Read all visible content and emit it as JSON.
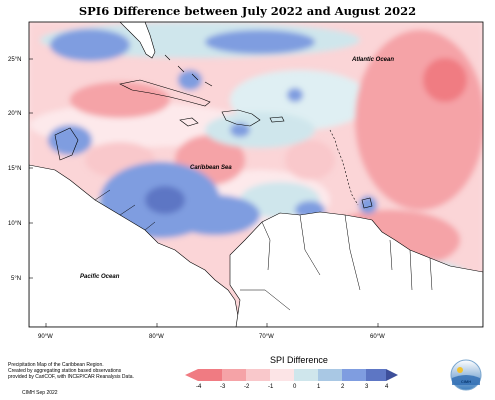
{
  "title": "SPI6 Difference between July 2022 and August 2022",
  "lat_labels": [
    "25°N",
    "20°N",
    "15°N",
    "10°N",
    "5°N"
  ],
  "lon_labels": [
    "90°W",
    "80°W",
    "70°W",
    "60°W"
  ],
  "places": {
    "atlantic": "Atlantic Ocean",
    "caribbean": "Caribbean Sea",
    "pacific": "Pacific Ocean"
  },
  "notes": {
    "line1": "Precipitation Map of the Caribbean Region.",
    "line2": "Created by aggregating station based observations",
    "line3": "provided by CariCOF, with INCEP/CAR Reanalysis Data.",
    "credit": "CIMH Sep 2022"
  },
  "legend": {
    "title": "SPI Difference",
    "ticks": [
      "-4",
      "-3",
      "-2",
      "-1",
      "0",
      "1",
      "2",
      "3",
      "4"
    ],
    "colors": [
      "#f07b82",
      "#f5a3a7",
      "#f9c8cb",
      "#fce4e6",
      "#cfe6ec",
      "#a9c8e4",
      "#7f9de0",
      "#5d76c4",
      "#3d4f9a"
    ]
  },
  "logo_text": "CIMH"
}
